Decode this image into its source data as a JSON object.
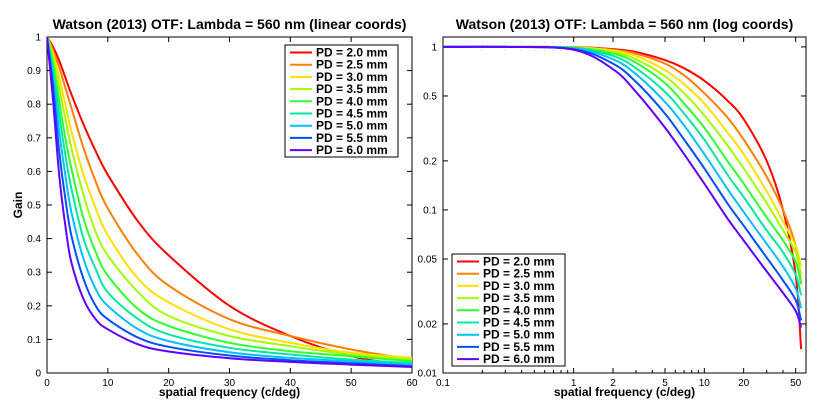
{
  "chart_data": [
    {
      "type": "line",
      "title": "Watson (2013) OTF: Lambda = 560 nm (linear coords)",
      "xlabel": "spatial frequency (c/deg)",
      "ylabel": "Gain",
      "xscale": "linear",
      "yscale": "linear",
      "xlim": [
        0,
        60
      ],
      "ylim": [
        0,
        1
      ],
      "xticks": [
        0,
        10,
        20,
        30,
        40,
        50,
        60
      ],
      "xticklabels": [
        "0",
        "10",
        "20",
        "30",
        "40",
        "50",
        "60"
      ],
      "yticks": [
        0,
        0.1,
        0.2,
        0.3,
        0.4,
        0.5,
        0.6,
        0.7,
        0.8,
        0.9,
        1
      ],
      "yticklabels": [
        "0",
        "0.1",
        "0.2",
        "0.3",
        "0.4",
        "0.5",
        "0.6",
        "0.7",
        "0.8",
        "0.9",
        "1"
      ],
      "grid": false,
      "legend": "top-right",
      "x": [
        0,
        1,
        2,
        3,
        4,
        6,
        8,
        10,
        15,
        20,
        30,
        40,
        50,
        60
      ],
      "series": [
        {
          "name": "PD = 2.0 mm",
          "color": "#ff0000",
          "values": [
            1,
            0.97,
            0.93,
            0.88,
            0.83,
            0.74,
            0.66,
            0.59,
            0.45,
            0.35,
            0.2,
            0.11,
            0.05,
            0.02
          ]
        },
        {
          "name": "PD = 2.5 mm",
          "color": "#ff8000",
          "values": [
            1,
            0.96,
            0.91,
            0.85,
            0.79,
            0.67,
            0.57,
            0.49,
            0.35,
            0.26,
            0.16,
            0.11,
            0.07,
            0.04
          ]
        },
        {
          "name": "PD = 3.0 mm",
          "color": "#ffe000",
          "values": [
            1,
            0.95,
            0.88,
            0.8,
            0.72,
            0.59,
            0.49,
            0.41,
            0.28,
            0.21,
            0.13,
            0.09,
            0.06,
            0.045
          ]
        },
        {
          "name": "PD = 3.5 mm",
          "color": "#a0ff00",
          "values": [
            1,
            0.94,
            0.85,
            0.76,
            0.67,
            0.53,
            0.42,
            0.35,
            0.24,
            0.17,
            0.11,
            0.08,
            0.055,
            0.04
          ]
        },
        {
          "name": "PD = 4.0 mm",
          "color": "#30ff30",
          "values": [
            1,
            0.92,
            0.81,
            0.7,
            0.61,
            0.46,
            0.36,
            0.29,
            0.19,
            0.14,
            0.09,
            0.065,
            0.05,
            0.035
          ]
        },
        {
          "name": "PD = 4.5 mm",
          "color": "#00e8a0",
          "values": [
            1,
            0.9,
            0.77,
            0.65,
            0.55,
            0.4,
            0.31,
            0.24,
            0.16,
            0.115,
            0.075,
            0.055,
            0.04,
            0.03
          ]
        },
        {
          "name": "PD = 5.0 mm",
          "color": "#00c0ff",
          "values": [
            1,
            0.88,
            0.72,
            0.59,
            0.48,
            0.34,
            0.25,
            0.2,
            0.13,
            0.095,
            0.062,
            0.045,
            0.035,
            0.025
          ]
        },
        {
          "name": "PD = 5.5 mm",
          "color": "#0050ff",
          "values": [
            1,
            0.85,
            0.66,
            0.52,
            0.41,
            0.28,
            0.2,
            0.16,
            0.105,
            0.078,
            0.052,
            0.038,
            0.029,
            0.02
          ]
        },
        {
          "name": "PD = 6.0 mm",
          "color": "#6000ff",
          "values": [
            1,
            0.81,
            0.59,
            0.44,
            0.33,
            0.22,
            0.16,
            0.13,
            0.085,
            0.064,
            0.044,
            0.033,
            0.025,
            0.018
          ]
        }
      ]
    },
    {
      "type": "line",
      "title": "Watson (2013) OTF: Lambda = 560 nm (log coords)",
      "xlabel": "spatial frequency (c/deg)",
      "ylabel": "",
      "xscale": "log",
      "yscale": "log",
      "xlim": [
        0.1,
        60
      ],
      "ylim": [
        0.01,
        1.15
      ],
      "xticks": [
        0.1,
        1,
        2,
        5,
        10,
        20,
        50
      ],
      "xticklabels": [
        "0.1",
        "1",
        "2",
        "5",
        "10",
        "20",
        "50"
      ],
      "yticks": [
        0.01,
        0.02,
        0.05,
        0.1,
        0.2,
        0.5,
        1
      ],
      "yticklabels": [
        "0.01",
        "0.02",
        "0.05",
        "0.1",
        "0.2",
        "0.5",
        "1"
      ],
      "grid": "partial x minor",
      "legend": "bottom-left",
      "x": [
        0.1,
        0.3,
        1,
        2,
        3,
        5,
        7,
        10,
        15,
        20,
        30,
        40,
        50,
        55
      ],
      "series": [
        {
          "name": "PD = 2.0 mm",
          "color": "#ff0000",
          "values": [
            1,
            1,
            0.998,
            0.97,
            0.93,
            0.83,
            0.74,
            0.62,
            0.47,
            0.36,
            0.2,
            0.1,
            0.04,
            0.014
          ]
        },
        {
          "name": "PD = 2.5 mm",
          "color": "#ff8000",
          "values": [
            1,
            1,
            0.997,
            0.96,
            0.91,
            0.79,
            0.67,
            0.52,
            0.37,
            0.27,
            0.16,
            0.1,
            0.06,
            0.035
          ]
        },
        {
          "name": "PD = 3.0 mm",
          "color": "#ffe000",
          "values": [
            1,
            1,
            0.995,
            0.95,
            0.88,
            0.72,
            0.59,
            0.45,
            0.3,
            0.22,
            0.13,
            0.085,
            0.06,
            0.045
          ]
        },
        {
          "name": "PD = 3.5 mm",
          "color": "#a0ff00",
          "values": [
            1,
            1,
            0.993,
            0.93,
            0.84,
            0.66,
            0.52,
            0.38,
            0.25,
            0.18,
            0.11,
            0.075,
            0.055,
            0.04
          ]
        },
        {
          "name": "PD = 4.0 mm",
          "color": "#30ff30",
          "values": [
            1,
            1,
            0.99,
            0.91,
            0.8,
            0.6,
            0.45,
            0.32,
            0.2,
            0.145,
            0.09,
            0.065,
            0.048,
            0.035
          ]
        },
        {
          "name": "PD = 4.5 mm",
          "color": "#00e8a0",
          "values": [
            1,
            1,
            0.985,
            0.88,
            0.74,
            0.53,
            0.39,
            0.27,
            0.165,
            0.12,
            0.075,
            0.055,
            0.04,
            0.03
          ]
        },
        {
          "name": "PD = 5.0 mm",
          "color": "#00c0ff",
          "values": [
            1,
            1,
            0.98,
            0.84,
            0.68,
            0.46,
            0.33,
            0.22,
            0.135,
            0.097,
            0.062,
            0.045,
            0.033,
            0.025
          ]
        },
        {
          "name": "PD = 5.5 mm",
          "color": "#0050ff",
          "values": [
            1,
            1,
            0.97,
            0.79,
            0.61,
            0.39,
            0.27,
            0.18,
            0.11,
            0.08,
            0.051,
            0.037,
            0.028,
            0.021
          ]
        },
        {
          "name": "PD = 6.0 mm",
          "color": "#6000ff",
          "values": [
            1,
            1,
            0.96,
            0.73,
            0.53,
            0.32,
            0.22,
            0.145,
            0.089,
            0.065,
            0.042,
            0.031,
            0.024,
            0.019
          ]
        }
      ]
    }
  ]
}
